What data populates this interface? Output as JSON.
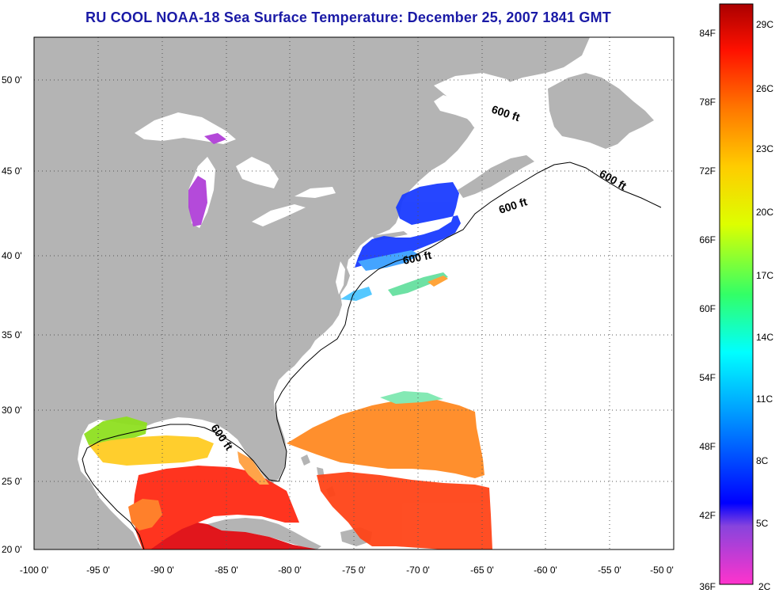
{
  "title": "RU COOL  NOAA-18  Sea Surface Temperature:  December 25, 2007 1841 GMT",
  "map": {
    "lon_labels": [
      "-100 0'",
      "-95 0'",
      "-90 0'",
      "-85 0'",
      "-80 0'",
      "-75 0'",
      "-70 0'",
      "-65 0'",
      "-60 0'",
      "-55 0'",
      "-50 0'"
    ],
    "lat_labels": [
      "50 0'",
      "45 0'",
      "40 0'",
      "35 0'",
      "30 0'",
      "25 0'",
      "20 0'"
    ],
    "contour_label": "600 ft",
    "colors": {
      "land": "#b4b4b4",
      "ocean": "#ffffff",
      "grid": "#555555"
    }
  },
  "colorbar": {
    "fahrenheit_labels": [
      "84F",
      "78F",
      "72F",
      "66F",
      "60F",
      "54F",
      "48F",
      "42F",
      "36F"
    ],
    "celsius_labels": [
      "29C",
      "26C",
      "23C",
      "20C",
      "17C",
      "14C",
      "11C",
      "8C",
      "5C",
      "2C"
    ],
    "colors": [
      "#ff33cc",
      "#8844dd",
      "#0000ff",
      "#00a0ff",
      "#00ffff",
      "#33ff66",
      "#ddff00",
      "#ffcc00",
      "#ff7700",
      "#ff1100",
      "#aa0000"
    ]
  }
}
